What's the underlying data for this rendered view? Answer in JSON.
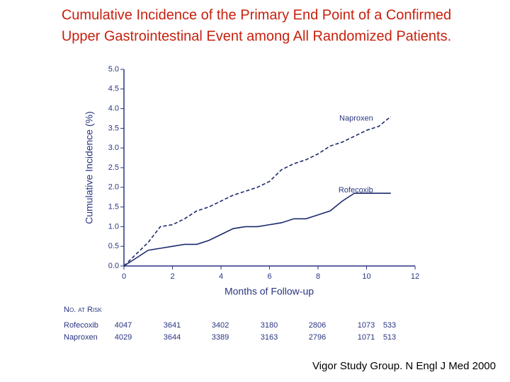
{
  "chart_data": {
    "type": "line",
    "title": [
      "Cumulative Incidence of the Primary End Point of a Confirmed",
      "Upper Gastrointestinal Event among All Randomized Patients."
    ],
    "xlabel": "Months of Follow-up",
    "ylabel": "Cumulative Incidence (%)",
    "x": [
      0,
      0.5,
      1,
      1.5,
      2,
      2.5,
      3,
      3.5,
      4,
      4.5,
      5,
      5.5,
      6,
      6.5,
      7,
      7.5,
      8,
      8.5,
      9,
      9.5,
      10,
      10.5,
      11
    ],
    "series": [
      {
        "name": "Naproxen",
        "color": "#1a2a6c",
        "dashed": true,
        "values": [
          0,
          0.3,
          0.6,
          1.0,
          1.05,
          1.2,
          1.4,
          1.5,
          1.65,
          1.8,
          1.9,
          2.0,
          2.15,
          2.45,
          2.6,
          2.7,
          2.85,
          3.05,
          3.15,
          3.3,
          3.45,
          3.55,
          3.8
        ]
      },
      {
        "name": "Rofecoxib",
        "color": "#1a2a6c",
        "dashed": false,
        "values": [
          0,
          0.2,
          0.4,
          0.45,
          0.5,
          0.55,
          0.55,
          0.65,
          0.8,
          0.95,
          1.0,
          1.0,
          1.05,
          1.1,
          1.2,
          1.2,
          1.3,
          1.4,
          1.65,
          1.85,
          1.85,
          1.85,
          1.85
        ]
      }
    ],
    "xlim": [
      0,
      12
    ],
    "xticks": [
      0,
      2,
      4,
      6,
      8,
      10,
      12
    ],
    "ylim": [
      0,
      5
    ],
    "yticks": [
      {
        "value": 0,
        "label": "0.0"
      },
      0.5,
      {
        "value": 1,
        "label": "1.0"
      },
      1.5,
      {
        "value": 2,
        "label": "2.0"
      },
      2.5,
      {
        "value": 3,
        "label": "3.0"
      },
      3.5,
      {
        "value": 4,
        "label": "4.0"
      },
      4.5,
      {
        "value": 5,
        "label": "5.0"
      }
    ],
    "axis_color": "#2a3580"
  },
  "at_risk": {
    "title": "No. at Risk",
    "rows": [
      {
        "name": "Rofecoxib",
        "values": [
          4047,
          3641,
          3402,
          3180,
          2806,
          1073,
          533
        ]
      },
      {
        "name": "Naproxen",
        "values": [
          4029,
          3644,
          3389,
          3163,
          2796,
          1071,
          513
        ]
      }
    ]
  },
  "citation": "Vigor Study Group. N Engl J Med 2000"
}
